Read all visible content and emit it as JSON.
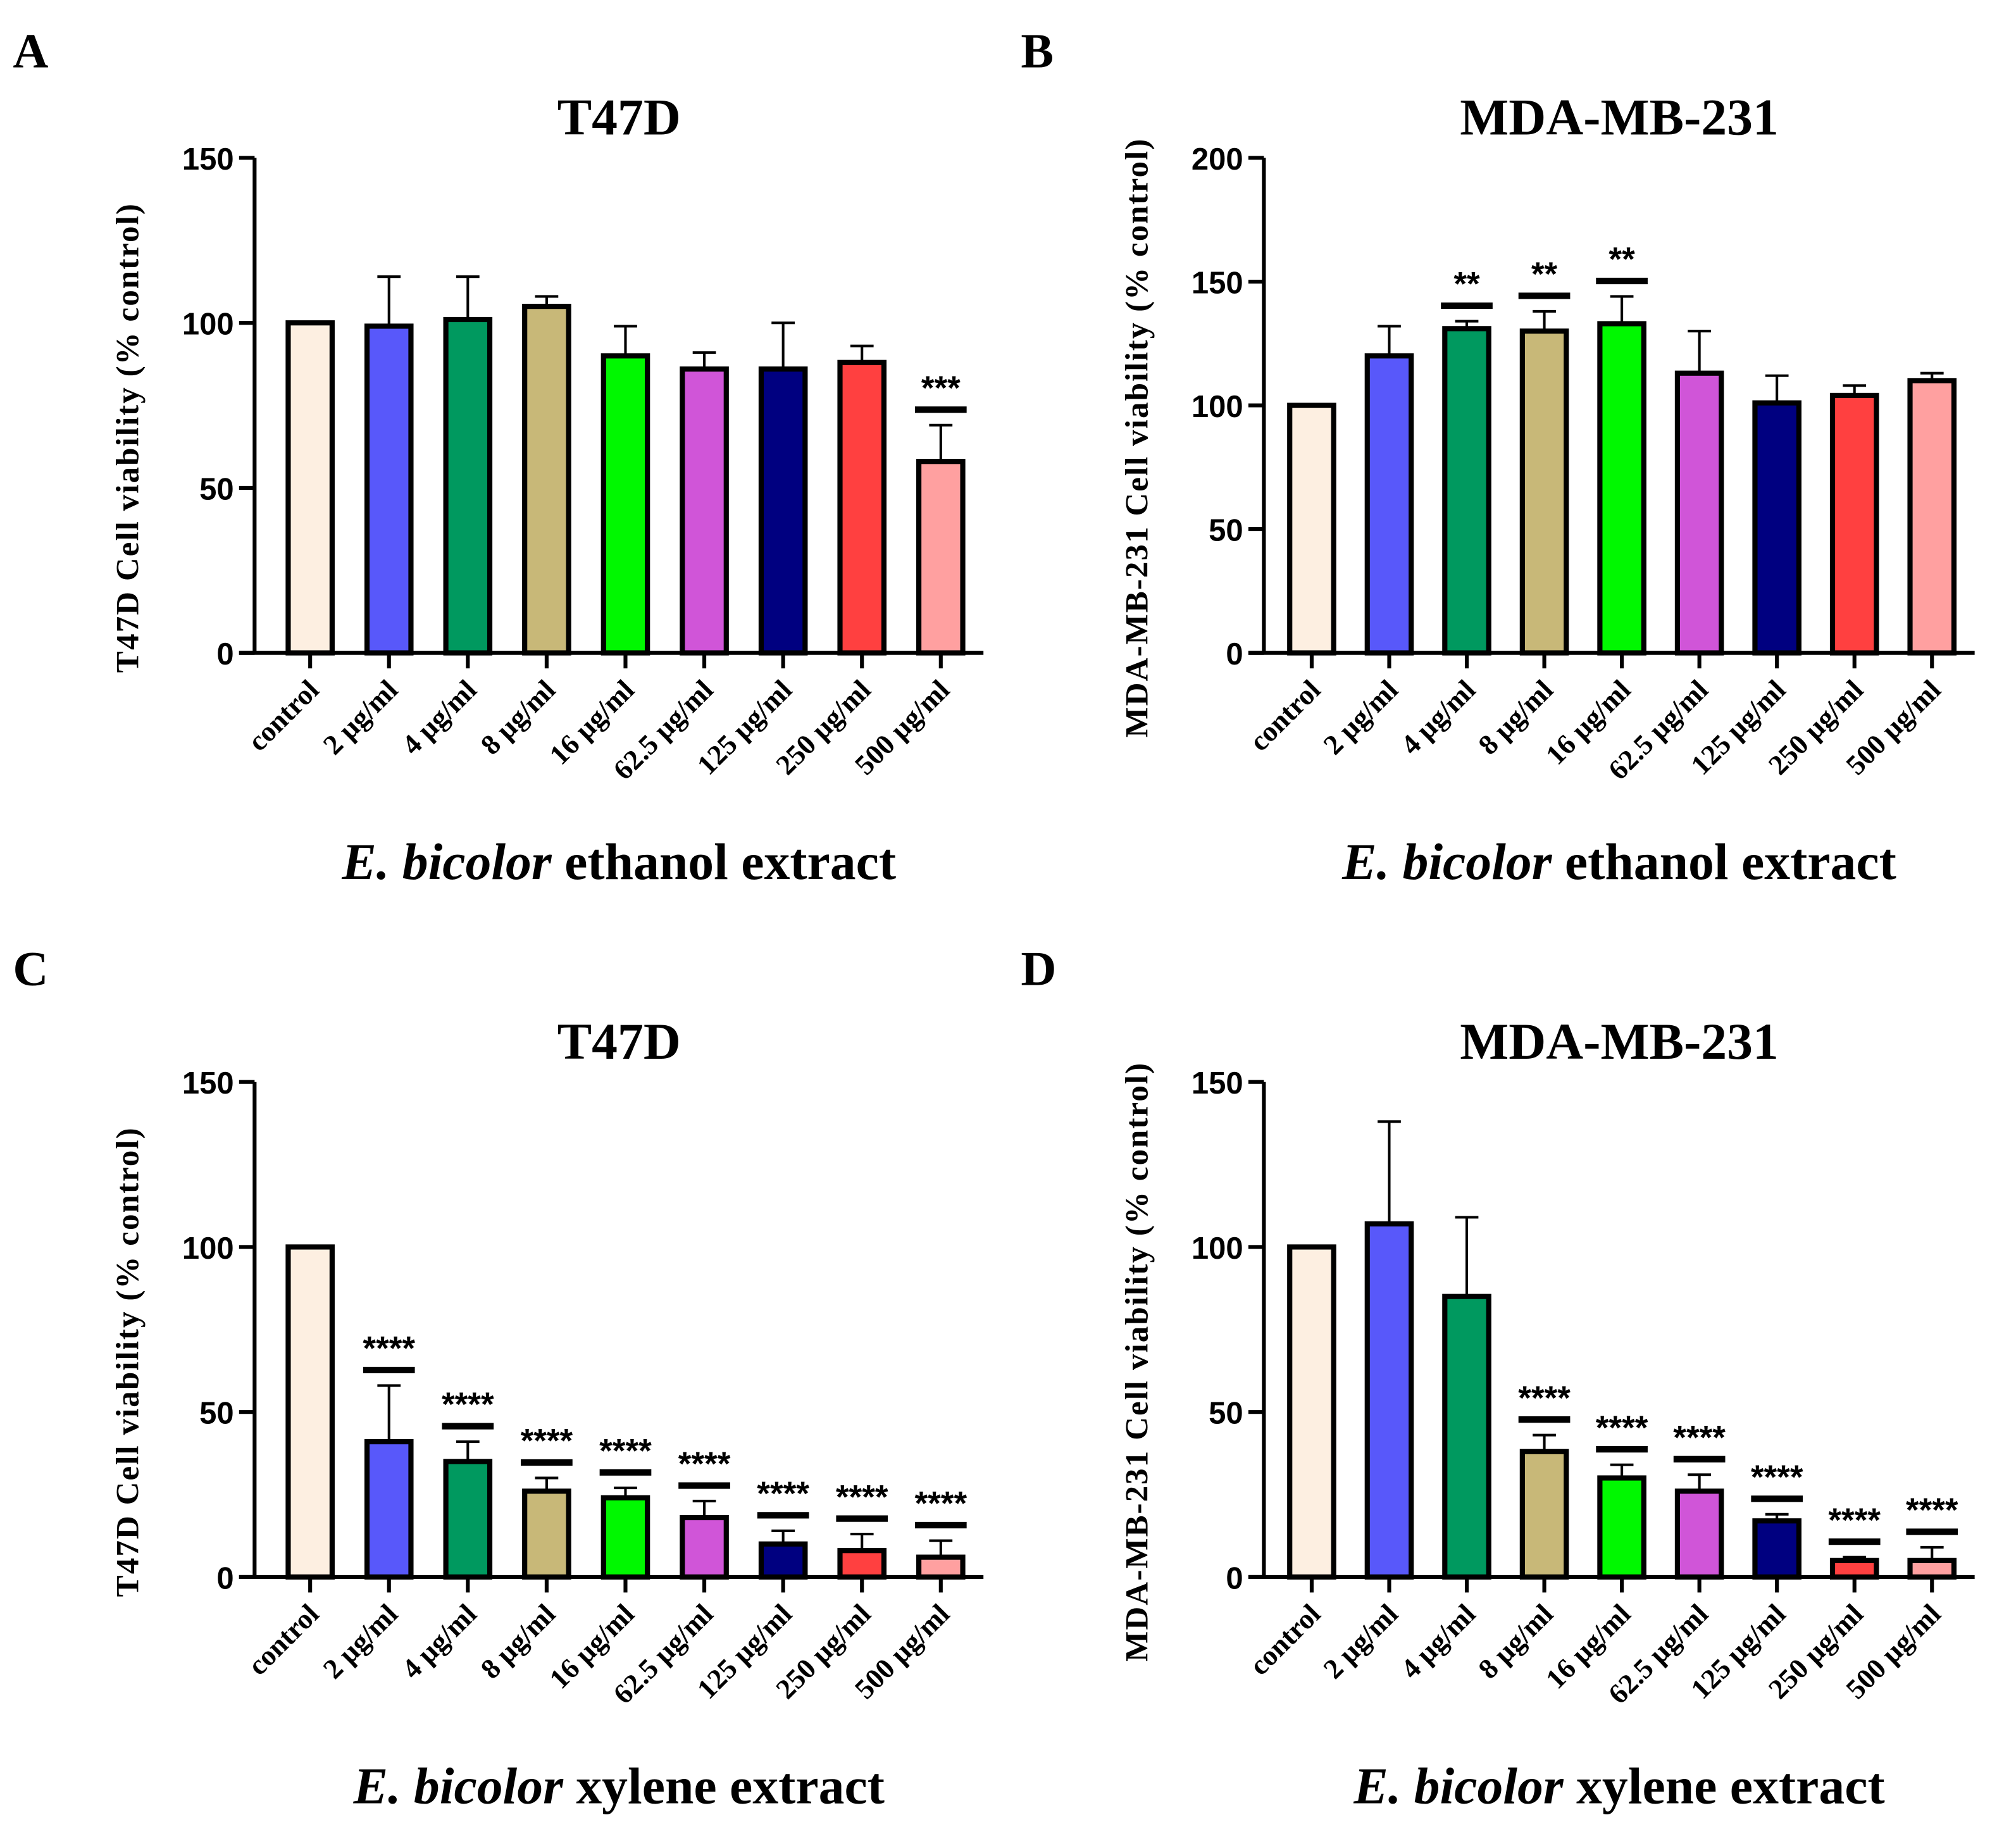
{
  "categories": [
    "control",
    "2 µg/ml",
    "4 µg/ml",
    "8 µg/ml",
    "16 µg/ml",
    "62.5 µg/ml",
    "125 µg/ml",
    "250 µg/ml",
    "500 µg/ml"
  ],
  "colors": [
    "#FDEFE1",
    "#5858FA",
    "#00995F",
    "#C8B878",
    "#00F800",
    "#D055D8",
    "#000080",
    "#FF4040",
    "#FFA0A0"
  ],
  "chart_data": [
    {
      "panel": "A",
      "type": "bar",
      "title": "T47D",
      "ylabel": "T47D Cell viability (% control)",
      "xlabel_italic": "E. bicolor",
      "xlabel_rest": " ethanol extract",
      "ylim": [
        0,
        150
      ],
      "yticks": [
        0,
        50,
        100,
        150
      ],
      "values": [
        100,
        99,
        101,
        105,
        90,
        86,
        86,
        88,
        58
      ],
      "errors": [
        0,
        15,
        13,
        3,
        9,
        5,
        14,
        5,
        11
      ],
      "significance": [
        "",
        "",
        "",
        "",
        "",
        "",
        "",
        "",
        "***"
      ]
    },
    {
      "panel": "B",
      "type": "bar",
      "title": "MDA-MB-231",
      "ylabel": "MDA-MB-231 Cell viability (% control)",
      "xlabel_italic": "E. bicolor",
      "xlabel_rest": " ethanol extract",
      "ylim": [
        0,
        200
      ],
      "yticks": [
        0,
        50,
        100,
        150,
        200
      ],
      "values": [
        100,
        120,
        131,
        130,
        133,
        113,
        101,
        104,
        110
      ],
      "errors": [
        0,
        12,
        3,
        8,
        11,
        17,
        11,
        4,
        3
      ],
      "significance": [
        "",
        "",
        "**",
        "**",
        "**",
        "",
        "",
        "",
        ""
      ]
    },
    {
      "panel": "C",
      "type": "bar",
      "title": "T47D",
      "ylabel": "T47D Cell viability (% control)",
      "xlabel_italic": "E. bicolor",
      "xlabel_rest": " xylene extract",
      "ylim": [
        0,
        150
      ],
      "yticks": [
        0,
        50,
        100,
        150
      ],
      "values": [
        100,
        41,
        35,
        26,
        24,
        18,
        10,
        8,
        6
      ],
      "errors": [
        0,
        17,
        6,
        4,
        3,
        5,
        4,
        5,
        5
      ],
      "significance": [
        "",
        "****",
        "****",
        "****",
        "****",
        "****",
        "****",
        "****",
        "****"
      ]
    },
    {
      "panel": "D",
      "type": "bar",
      "title": "MDA-MB-231",
      "ylabel": "MDA-MB-231 Cell viability (% control)",
      "xlabel_italic": "E. bicolor",
      "xlabel_rest": " xylene extract",
      "ylim": [
        0,
        150
      ],
      "yticks": [
        0,
        50,
        100,
        150
      ],
      "values": [
        100,
        107,
        85,
        38,
        30,
        26,
        17,
        5,
        5
      ],
      "errors": [
        0,
        31,
        24,
        5,
        4,
        5,
        2,
        1,
        4
      ],
      "significance": [
        "",
        "",
        "",
        "****",
        "****",
        "****",
        "****",
        "****",
        "****"
      ]
    }
  ]
}
